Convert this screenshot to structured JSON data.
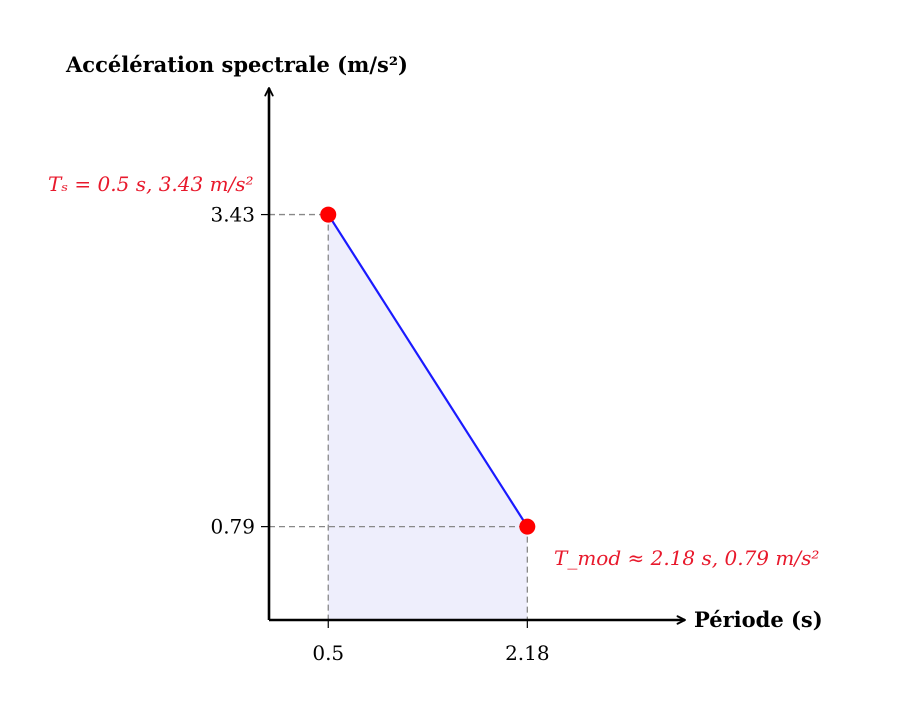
{
  "chart_data": {
    "type": "line",
    "title": "",
    "xlabel": "Période (s)",
    "ylabel": "Accélération spectrale (m/s²)",
    "xlim": [
      0,
      3.5
    ],
    "ylim": [
      0,
      4.2
    ],
    "x_ticks": [
      "0.5",
      "2.18"
    ],
    "y_ticks": [
      "3.43",
      "0.79"
    ],
    "grid": false,
    "series": [
      {
        "x": [
          0.5,
          2.18
        ],
        "y": [
          3.43,
          0.79
        ]
      }
    ],
    "points": [
      {
        "x": 0.5,
        "y": 3.43,
        "label": "Tₛ = 0.5 s, 3.43 m/s²"
      },
      {
        "x": 2.18,
        "y": 0.79,
        "label": "T_mod ≈ 2.18 s, 0.79 m/s²"
      }
    ],
    "colors": {
      "line": "#1a1aff",
      "point": "#ff0000",
      "annotation": "#e8192c",
      "fill": "#eeeefc",
      "guide": "#888888",
      "axis": "#000000"
    }
  }
}
